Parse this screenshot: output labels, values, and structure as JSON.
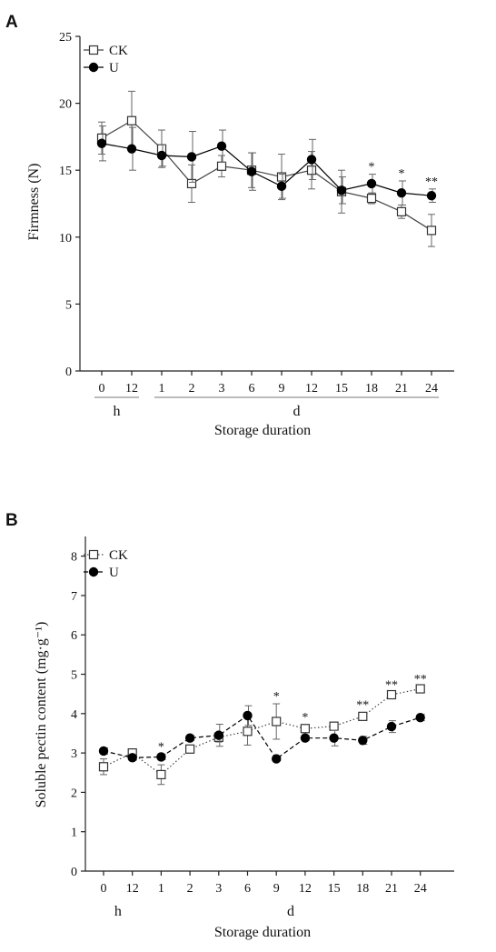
{
  "panels": [
    {
      "letter": "A",
      "chart_data": {
        "type": "line",
        "categories": [
          "0",
          "12",
          "1",
          "2",
          "3",
          "6",
          "9",
          "12",
          "15",
          "18",
          "21",
          "24"
        ],
        "groups": [
          {
            "label": "h",
            "from": 0,
            "to": 1
          },
          {
            "label": "d",
            "from": 2,
            "to": 11
          }
        ],
        "xlabel": "Storage duration",
        "ylabel": "Firmness (N)",
        "ylim": [
          0,
          25
        ],
        "yticks": [
          0,
          5,
          10,
          15,
          20,
          25
        ],
        "legend_position": "top-left",
        "grid": false,
        "series": [
          {
            "name": "CK",
            "marker": "open-square",
            "line": "solid",
            "color": "#444444",
            "values": [
              17.4,
              18.7,
              16.6,
              14.0,
              15.3,
              15.0,
              14.5,
              15.0,
              13.4,
              12.9,
              11.9,
              10.5
            ],
            "errors": [
              1.2,
              2.2,
              1.4,
              1.4,
              0.8,
              1.3,
              1.7,
              1.4,
              1.6,
              0.4,
              0.5,
              1.2
            ]
          },
          {
            "name": "U",
            "marker": "filled-circle",
            "line": "solid",
            "color": "#000000",
            "values": [
              17.0,
              16.6,
              16.1,
              16.0,
              16.8,
              14.9,
              13.8,
              15.8,
              13.5,
              14.0,
              13.3,
              13.1
            ],
            "errors": [
              1.3,
              1.6,
              0.8,
              1.9,
              1.2,
              1.4,
              0.9,
              1.5,
              1.0,
              0.7,
              0.9,
              0.5
            ]
          }
        ],
        "annotations": [
          {
            "index": 9,
            "text": "*"
          },
          {
            "index": 10,
            "text": "*"
          },
          {
            "index": 11,
            "text": "**"
          }
        ]
      }
    },
    {
      "letter": "B",
      "chart_data": {
        "type": "line",
        "categories": [
          "0",
          "12",
          "1",
          "2",
          "3",
          "6",
          "9",
          "12",
          "15",
          "18",
          "21",
          "24"
        ],
        "groups": [
          {
            "label": "h",
            "from": 0,
            "to": 1
          },
          {
            "label": "d",
            "from": 2,
            "to": 11
          }
        ],
        "xlabel": "Storage duration",
        "ylabel": "Soluble pectin content (mg·g⁻¹)",
        "ylim": [
          0,
          8.5
        ],
        "yticks": [
          0,
          1,
          2,
          3,
          4,
          5,
          6,
          7,
          8
        ],
        "legend_position": "top-left",
        "grid": false,
        "series": [
          {
            "name": "CK",
            "marker": "open-square",
            "line": "dotted",
            "color": "#444444",
            "values": [
              2.65,
              3.0,
              2.45,
              3.1,
              3.4,
              3.55,
              3.8,
              3.62,
              3.68,
              3.93,
              4.48,
              4.63
            ],
            "errors": [
              0.2,
              0.1,
              0.25,
              0.1,
              0.12,
              0.35,
              0.45,
              0.1,
              0.1,
              0.1,
              0.06,
              0.06
            ]
          },
          {
            "name": "U",
            "marker": "filled-circle",
            "line": "dashed",
            "color": "#000000",
            "values": [
              3.05,
              2.88,
              2.9,
              3.38,
              3.45,
              3.95,
              2.85,
              3.38,
              3.38,
              3.32,
              3.67,
              3.9
            ],
            "errors": [
              0.08,
              0.06,
              0.07,
              0.06,
              0.28,
              0.25,
              0.05,
              0.06,
              0.2,
              0.1,
              0.15,
              0.08
            ]
          }
        ],
        "annotations": [
          {
            "index": 2,
            "text": "*"
          },
          {
            "index": 6,
            "text": "*"
          },
          {
            "index": 7,
            "text": "*"
          },
          {
            "index": 9,
            "text": "**"
          },
          {
            "index": 10,
            "text": "**"
          },
          {
            "index": 11,
            "text": "**"
          }
        ]
      }
    }
  ]
}
